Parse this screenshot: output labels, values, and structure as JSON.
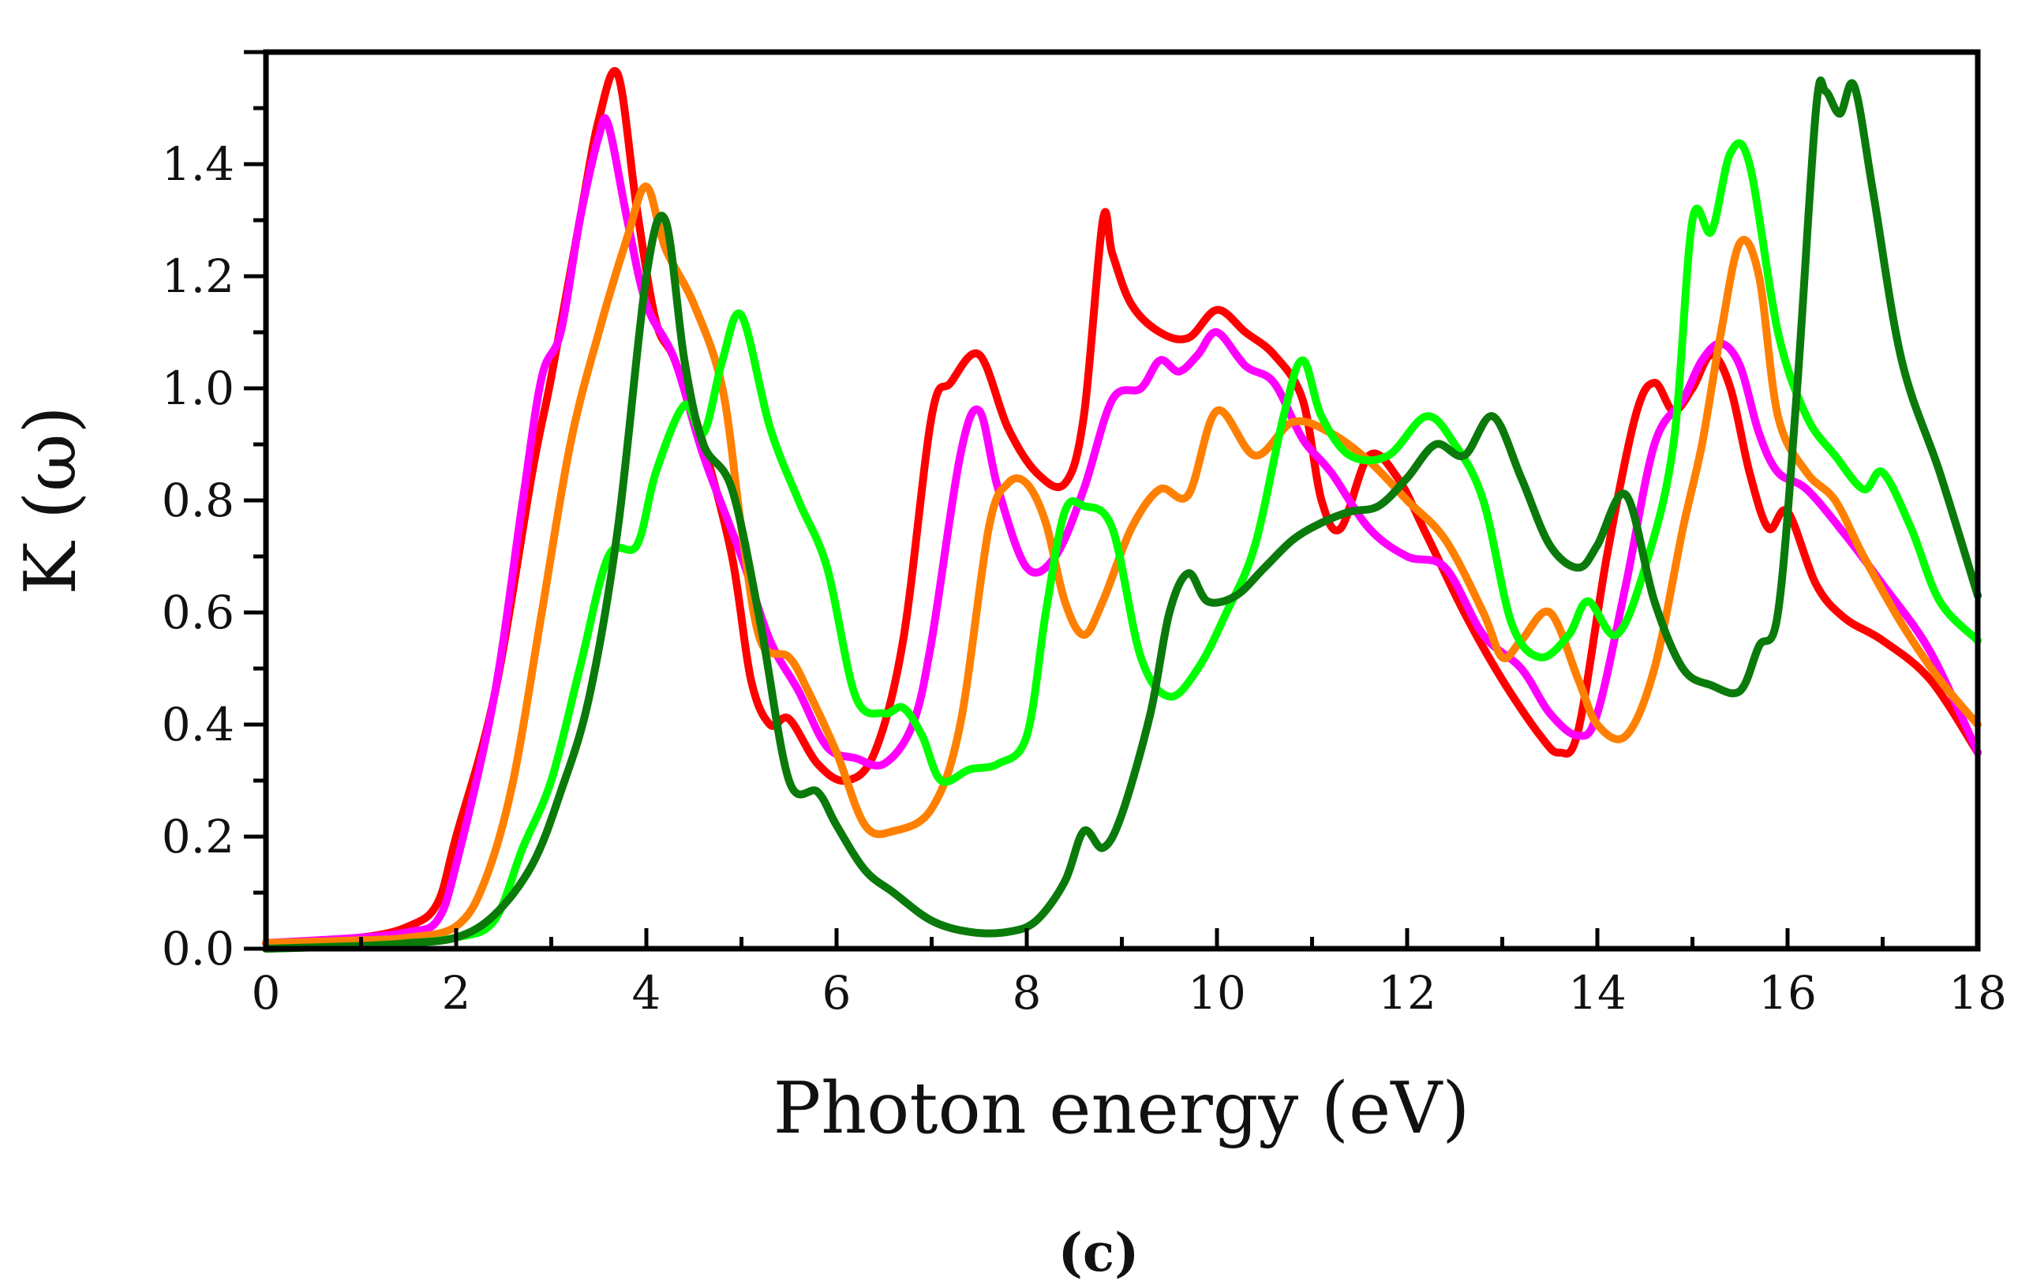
{
  "chart_data": {
    "type": "line",
    "title": "",
    "caption": "(c)",
    "xlabel": "Photon energy (eV)",
    "ylabel": "K (ω)",
    "xlim": [
      0,
      18
    ],
    "ylim": [
      0,
      1.6
    ],
    "x_ticks": [
      0,
      2,
      4,
      6,
      8,
      10,
      12,
      14,
      16,
      18
    ],
    "x_tick_labels": [
      "0",
      "2",
      "4",
      "6",
      "8",
      "10",
      "12",
      "14",
      "16",
      "18"
    ],
    "y_ticks": [
      0.0,
      0.2,
      0.4,
      0.6,
      0.8,
      1.0,
      1.2,
      1.4
    ],
    "y_tick_labels": [
      "0.0",
      "0.2",
      "0.4",
      "0.6",
      "0.8",
      "1.0",
      "1.2",
      "1.4"
    ],
    "grid": false,
    "legend": "none",
    "series": [
      {
        "name": "red",
        "color": "#ff0000",
        "x": [
          0,
          1,
          1.5,
          1.8,
          2.0,
          2.4,
          2.8,
          3.0,
          3.3,
          3.5,
          3.7,
          3.9,
          4.1,
          4.3,
          4.6,
          4.9,
          5.1,
          5.3,
          5.5,
          5.8,
          6.1,
          6.4,
          6.7,
          7.0,
          7.2,
          7.5,
          7.8,
          8.1,
          8.4,
          8.6,
          8.8,
          8.9,
          9.1,
          9.4,
          9.7,
          10.0,
          10.3,
          10.6,
          10.9,
          11.1,
          11.3,
          11.6,
          11.9,
          12.2,
          12.6,
          13.0,
          13.4,
          13.6,
          13.8,
          14.1,
          14.4,
          14.6,
          14.8,
          15.0,
          15.2,
          15.4,
          15.6,
          15.8,
          16.0,
          16.3,
          16.6,
          17.0,
          17.5,
          18.0
        ],
        "values": [
          0.01,
          0.02,
          0.04,
          0.08,
          0.2,
          0.45,
          0.85,
          1.02,
          1.3,
          1.48,
          1.56,
          1.32,
          1.12,
          1.05,
          0.9,
          0.7,
          0.48,
          0.4,
          0.41,
          0.33,
          0.3,
          0.35,
          0.55,
          0.95,
          1.01,
          1.06,
          0.93,
          0.85,
          0.83,
          0.95,
          1.3,
          1.24,
          1.15,
          1.1,
          1.09,
          1.14,
          1.1,
          1.06,
          0.98,
          0.8,
          0.75,
          0.88,
          0.84,
          0.74,
          0.6,
          0.48,
          0.38,
          0.35,
          0.39,
          0.7,
          0.95,
          1.01,
          0.96,
          1.0,
          1.06,
          1.0,
          0.85,
          0.75,
          0.78,
          0.65,
          0.59,
          0.55,
          0.48,
          0.35
        ]
      },
      {
        "name": "magenta",
        "color": "#ff00ff",
        "x": [
          0,
          1,
          1.5,
          1.8,
          2.0,
          2.4,
          2.7,
          2.9,
          3.1,
          3.3,
          3.5,
          3.6,
          3.8,
          4.0,
          4.3,
          4.6,
          5.0,
          5.3,
          5.6,
          5.9,
          6.2,
          6.5,
          6.8,
          7.0,
          7.3,
          7.5,
          7.7,
          8.0,
          8.3,
          8.6,
          8.9,
          9.2,
          9.4,
          9.6,
          9.8,
          10.0,
          10.3,
          10.6,
          10.9,
          11.2,
          11.6,
          12.0,
          12.4,
          12.8,
          13.2,
          13.5,
          13.8,
          14.0,
          14.3,
          14.6,
          14.9,
          15.1,
          15.3,
          15.5,
          15.7,
          15.9,
          16.2,
          16.6,
          17.0,
          17.5,
          18.0
        ],
        "values": [
          0.01,
          0.02,
          0.03,
          0.05,
          0.15,
          0.45,
          0.8,
          1.02,
          1.1,
          1.3,
          1.45,
          1.47,
          1.3,
          1.15,
          1.05,
          0.88,
          0.7,
          0.55,
          0.46,
          0.36,
          0.34,
          0.33,
          0.4,
          0.55,
          0.88,
          0.96,
          0.82,
          0.68,
          0.7,
          0.82,
          0.98,
          1.0,
          1.05,
          1.03,
          1.06,
          1.1,
          1.04,
          1.01,
          0.91,
          0.85,
          0.75,
          0.7,
          0.68,
          0.56,
          0.5,
          0.42,
          0.38,
          0.42,
          0.65,
          0.9,
          0.98,
          1.05,
          1.08,
          1.04,
          0.92,
          0.85,
          0.82,
          0.74,
          0.65,
          0.53,
          0.35
        ]
      },
      {
        "name": "orange",
        "color": "#ff8000",
        "x": [
          0,
          1,
          1.5,
          2.0,
          2.3,
          2.6,
          2.9,
          3.2,
          3.5,
          3.8,
          4.0,
          4.2,
          4.5,
          4.8,
          5.0,
          5.2,
          5.5,
          5.7,
          6.0,
          6.3,
          6.6,
          7.0,
          7.3,
          7.6,
          7.8,
          8.0,
          8.2,
          8.4,
          8.6,
          8.8,
          9.1,
          9.4,
          9.7,
          10.0,
          10.4,
          10.8,
          11.2,
          11.6,
          12.0,
          12.4,
          12.8,
          13.0,
          13.2,
          13.5,
          13.8,
          14.0,
          14.3,
          14.6,
          14.9,
          15.1,
          15.3,
          15.5,
          15.7,
          15.9,
          16.2,
          16.5,
          16.8,
          17.2,
          17.6,
          18.0
        ],
        "values": [
          0.01,
          0.015,
          0.02,
          0.04,
          0.12,
          0.3,
          0.6,
          0.9,
          1.1,
          1.27,
          1.36,
          1.25,
          1.15,
          1.0,
          0.75,
          0.55,
          0.52,
          0.46,
          0.35,
          0.22,
          0.21,
          0.25,
          0.4,
          0.75,
          0.83,
          0.83,
          0.76,
          0.62,
          0.56,
          0.62,
          0.75,
          0.82,
          0.81,
          0.96,
          0.88,
          0.94,
          0.92,
          0.87,
          0.8,
          0.73,
          0.6,
          0.52,
          0.55,
          0.6,
          0.48,
          0.4,
          0.38,
          0.5,
          0.75,
          0.9,
          1.1,
          1.26,
          1.2,
          0.95,
          0.85,
          0.8,
          0.7,
          0.58,
          0.48,
          0.4
        ]
      },
      {
        "name": "light-green",
        "color": "#00ff00",
        "x": [
          0,
          1,
          1.5,
          2.0,
          2.4,
          2.7,
          3.0,
          3.3,
          3.6,
          3.9,
          4.1,
          4.4,
          4.6,
          4.8,
          5.0,
          5.3,
          5.6,
          5.9,
          6.2,
          6.5,
          6.7,
          6.9,
          7.1,
          7.4,
          7.7,
          8.0,
          8.2,
          8.4,
          8.6,
          8.9,
          9.2,
          9.5,
          9.8,
          10.1,
          10.4,
          10.7,
          10.9,
          11.1,
          11.4,
          11.8,
          12.2,
          12.5,
          12.8,
          13.1,
          13.4,
          13.7,
          13.9,
          14.2,
          14.5,
          14.8,
          15.0,
          15.2,
          15.4,
          15.6,
          15.9,
          16.2,
          16.5,
          16.8,
          17.0,
          17.3,
          17.6,
          18.0
        ],
        "values": [
          0.0,
          0.005,
          0.01,
          0.02,
          0.05,
          0.18,
          0.3,
          0.5,
          0.7,
          0.72,
          0.85,
          0.97,
          0.92,
          1.05,
          1.13,
          0.93,
          0.8,
          0.68,
          0.45,
          0.42,
          0.43,
          0.38,
          0.3,
          0.32,
          0.33,
          0.38,
          0.6,
          0.78,
          0.79,
          0.75,
          0.52,
          0.45,
          0.5,
          0.6,
          0.72,
          0.95,
          1.05,
          0.95,
          0.88,
          0.88,
          0.95,
          0.9,
          0.8,
          0.58,
          0.52,
          0.56,
          0.62,
          0.56,
          0.68,
          0.9,
          1.3,
          1.28,
          1.42,
          1.4,
          1.1,
          0.95,
          0.88,
          0.82,
          0.85,
          0.75,
          0.62,
          0.55
        ]
      },
      {
        "name": "dark-green",
        "color": "#0a7a0a",
        "x": [
          0,
          1,
          1.5,
          2.0,
          2.4,
          2.8,
          3.1,
          3.4,
          3.7,
          4.0,
          4.2,
          4.4,
          4.6,
          4.9,
          5.2,
          5.5,
          5.8,
          6.0,
          6.3,
          6.6,
          7.0,
          7.4,
          7.8,
          8.1,
          8.4,
          8.6,
          8.8,
          9.0,
          9.3,
          9.5,
          9.7,
          9.9,
          10.2,
          10.5,
          10.8,
          11.1,
          11.4,
          11.7,
          12.0,
          12.3,
          12.6,
          12.9,
          13.2,
          13.5,
          13.8,
          14.0,
          14.3,
          14.6,
          14.9,
          15.2,
          15.5,
          15.7,
          15.9,
          16.1,
          16.3,
          16.4,
          16.55,
          16.7,
          16.9,
          17.2,
          17.6,
          18.0
        ],
        "values": [
          0.0,
          0.005,
          0.01,
          0.02,
          0.06,
          0.15,
          0.28,
          0.45,
          0.75,
          1.2,
          1.3,
          1.05,
          0.9,
          0.82,
          0.58,
          0.3,
          0.28,
          0.22,
          0.14,
          0.1,
          0.05,
          0.03,
          0.03,
          0.05,
          0.12,
          0.21,
          0.18,
          0.24,
          0.42,
          0.6,
          0.67,
          0.62,
          0.63,
          0.68,
          0.73,
          0.76,
          0.78,
          0.79,
          0.84,
          0.9,
          0.88,
          0.95,
          0.84,
          0.72,
          0.68,
          0.72,
          0.81,
          0.62,
          0.5,
          0.47,
          0.46,
          0.54,
          0.6,
          1.0,
          1.5,
          1.53,
          1.49,
          1.54,
          1.35,
          1.05,
          0.85,
          0.63
        ]
      }
    ]
  }
}
